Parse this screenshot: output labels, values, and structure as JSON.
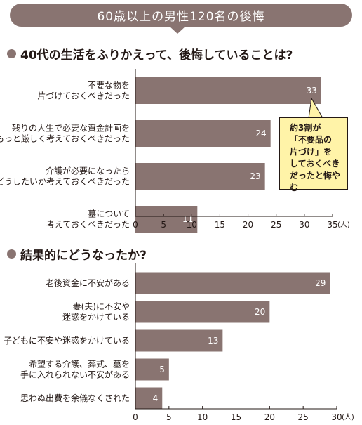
{
  "title": "60歳以上の男性120名の後悔",
  "colors": {
    "banner": "#897471",
    "bar": "#897471",
    "callout_fill": "#fff3a8"
  },
  "callout_text": "約3割が\n「不要品の\n片づけ」を\nしておくべき\nだったと悔やむ",
  "chart_data": [
    {
      "type": "bar",
      "orientation": "horizontal",
      "title": "40代の生活をふりかえって、後悔していることは?",
      "categories": [
        [
          "不要な物を",
          "片づけておくべきだった"
        ],
        [
          "残りの人生で必要な資金計画を",
          "もっと厳しく考えておくべきだった"
        ],
        [
          "介護が必要になったら",
          "どうしたいか考えておくべきだった"
        ],
        [
          "墓について",
          "考えておくべきだった"
        ]
      ],
      "values": [
        33,
        24,
        23,
        11
      ],
      "xlim": [
        0,
        35
      ],
      "ticks": [
        0,
        5,
        10,
        15,
        20,
        25,
        30,
        35
      ],
      "unit": "(人)",
      "grid": false
    },
    {
      "type": "bar",
      "orientation": "horizontal",
      "title": "結果的にどうなったか?",
      "categories": [
        [
          "老後資金に不安がある"
        ],
        [
          "妻(夫)に不安や",
          "迷惑をかけている"
        ],
        [
          "子どもに不安や迷惑をかけている"
        ],
        [
          "希望する介護、葬式、墓を",
          "手に入れられない不安がある"
        ],
        [
          "思わぬ出費を余儀なくされた"
        ]
      ],
      "values": [
        29,
        20,
        13,
        5,
        4
      ],
      "xlim": [
        0,
        30
      ],
      "ticks": [
        0,
        5,
        10,
        15,
        20,
        25,
        30
      ],
      "unit": "(人)",
      "grid": false
    }
  ]
}
